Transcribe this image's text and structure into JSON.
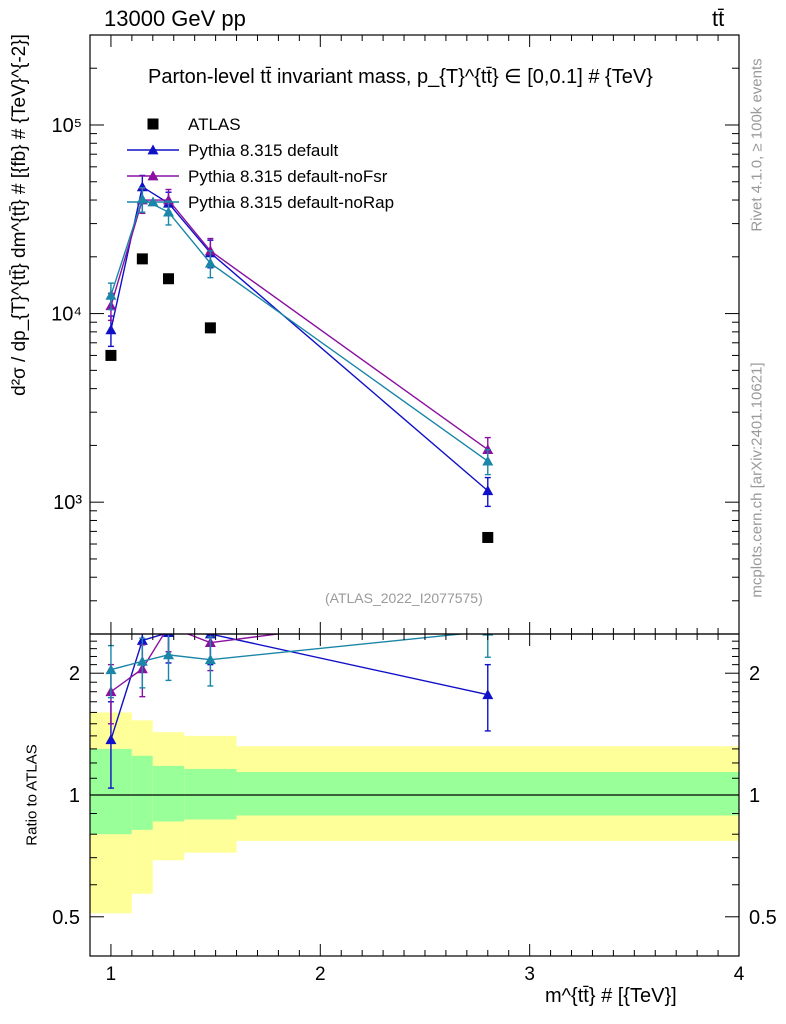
{
  "header": {
    "left": "13000 GeV pp",
    "right": "tt̄"
  },
  "side_text": {
    "top": "Rivet 4.1.0, ≥ 100k events",
    "bottom": "mcplots.cern.ch [arXiv:2401.10621]"
  },
  "watermark": "(ATLAS_2022_I2077575)",
  "chart_data": [
    {
      "type": "line",
      "role": "main",
      "title": "Parton-level tt̄ invariant mass, p_{T}^{tt̄} ∈ [0,0.1] # {TeV}",
      "ylabel": "d²σ / dp_{T}^{tt̄} dm^{tt̄} # [{fb} # {TeV}^{-2}]",
      "xlabel": "m^{tt̄} # [{TeV}]",
      "yscale": "log",
      "xlim": [
        0.9,
        4.0
      ],
      "ylim": [
        200,
        300000
      ],
      "x_ticks": [
        "1",
        "2",
        "3",
        "4"
      ],
      "y_ticks": [
        "10³",
        "10⁴",
        "10⁵"
      ],
      "legend_position": "top-left",
      "series": [
        {
          "name": "ATLAS",
          "color": "#000000",
          "marker": "square",
          "x": [
            1.0,
            1.15,
            1.275,
            1.475,
            2.8
          ],
          "y": [
            6000,
            19500,
            15300,
            8400,
            650
          ]
        },
        {
          "name": "Pythia 8.315 default",
          "color": "#1010c8",
          "marker": "triangle",
          "x": [
            1.0,
            1.15,
            1.275,
            1.475,
            2.8
          ],
          "y": [
            8200,
            47000,
            38500,
            21000,
            1150
          ],
          "err": [
            1500,
            7000,
            5500,
            3500,
            200
          ]
        },
        {
          "name": "Pythia 8.315 default-noFsr",
          "color": "#8a10a0",
          "marker": "triangle",
          "x": [
            1.0,
            1.15,
            1.275,
            1.475,
            2.8
          ],
          "y": [
            11000,
            40000,
            40000,
            21500,
            1900
          ],
          "err": [
            1800,
            6000,
            5500,
            3500,
            300
          ]
        },
        {
          "name": "Pythia 8.315 default-noRap",
          "color": "#1a86a8",
          "marker": "triangle",
          "x": [
            1.0,
            1.15,
            1.275,
            1.475,
            2.8
          ],
          "y": [
            12500,
            40500,
            34500,
            18500,
            1650
          ],
          "err": [
            2000,
            6000,
            5000,
            3000,
            250
          ]
        }
      ]
    },
    {
      "type": "line",
      "role": "ratio",
      "ylabel": "Ratio to ATLAS",
      "yscale": "log",
      "ylim": [
        0.4,
        2.5
      ],
      "y_ticks": [
        "0.5",
        "1",
        "2"
      ],
      "bands": {
        "edges": [
          0.9,
          1.1,
          1.2,
          1.35,
          1.6,
          4.0
        ],
        "outer_low": [
          0.51,
          0.57,
          0.69,
          0.72,
          0.77
        ],
        "outer_high": [
          1.6,
          1.53,
          1.43,
          1.4,
          1.32
        ],
        "inner_low": [
          0.8,
          0.82,
          0.86,
          0.87,
          0.89
        ],
        "inner_high": [
          1.3,
          1.25,
          1.18,
          1.16,
          1.14
        ],
        "outer_color": "#ffff99",
        "inner_color": "#99ff99"
      },
      "series": [
        {
          "name": "Pythia 8.315 default",
          "color": "#1010c8",
          "x": [
            1.0,
            1.15,
            1.275,
            1.475,
            2.8
          ],
          "y": [
            1.37,
            2.41,
            2.52,
            2.5,
            1.77
          ],
          "err": [
            0.33,
            0.4,
            0.4,
            0.4,
            0.33
          ]
        },
        {
          "name": "Pythia 8.315 default-noFsr",
          "color": "#8a10a0",
          "x": [
            1.0,
            1.15,
            1.275,
            1.475,
            2.8
          ],
          "y": [
            1.8,
            2.05,
            2.61,
            2.38,
            2.92
          ],
          "err": [
            0.3,
            0.3,
            0.35,
            0.35,
            0.4
          ]
        },
        {
          "name": "Pythia 8.315 default-noRap",
          "color": "#1a86a8",
          "x": [
            1.0,
            1.15,
            1.275,
            1.475,
            2.8
          ],
          "y": [
            2.04,
            2.14,
            2.22,
            2.16,
            2.54
          ],
          "err": [
            0.3,
            0.3,
            0.3,
            0.3,
            0.35
          ]
        }
      ]
    }
  ]
}
